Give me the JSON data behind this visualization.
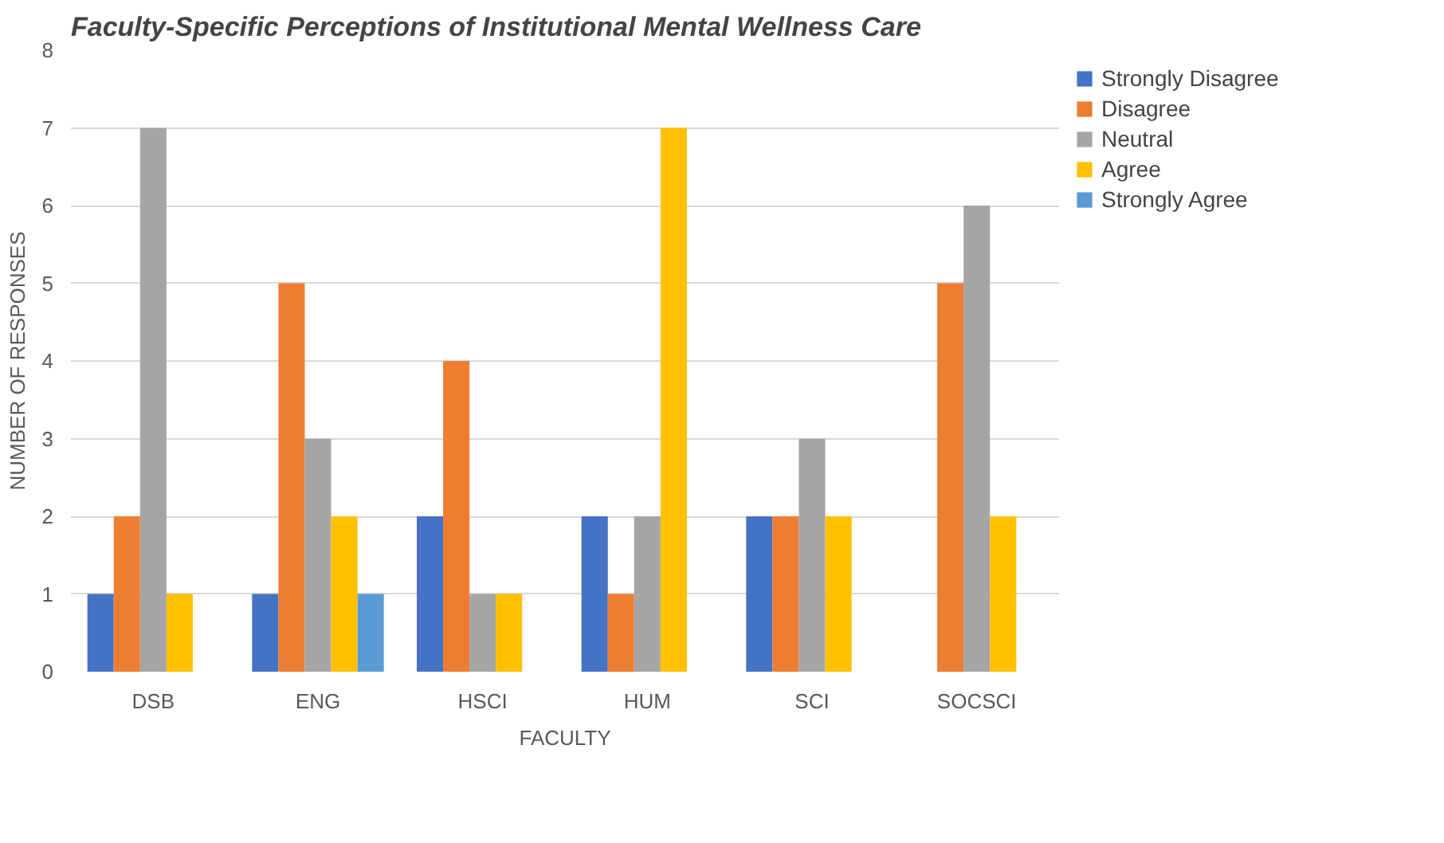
{
  "chart_data": {
    "type": "bar",
    "title": "Faculty-Specific Perceptions of Institutional Mental Wellness Care",
    "xlabel": "FACULTY",
    "ylabel": "NUMBER OF RESPONSES",
    "categories": [
      "DSB",
      "ENG",
      "HSCI",
      "HUM",
      "SCI",
      "SOCSCI"
    ],
    "series": [
      {
        "name": "Strongly Disagree",
        "color": "#4472c4",
        "values": [
          1,
          1,
          2,
          2,
          2,
          0
        ]
      },
      {
        "name": "Disagree",
        "color": "#ed7d31",
        "values": [
          2,
          5,
          4,
          1,
          2,
          5
        ]
      },
      {
        "name": "Neutral",
        "color": "#a5a5a5",
        "values": [
          7,
          3,
          1,
          2,
          3,
          6
        ]
      },
      {
        "name": "Agree",
        "color": "#ffc000",
        "values": [
          1,
          2,
          1,
          7,
          2,
          2
        ]
      },
      {
        "name": "Strongly Agree",
        "color": "#5b9bd5",
        "values": [
          0,
          1,
          0,
          0,
          0,
          0
        ]
      }
    ],
    "ylim": [
      0,
      8
    ],
    "yticks": [
      0,
      1,
      2,
      3,
      4,
      5,
      6,
      7,
      8
    ],
    "grid": "y",
    "legend": "right"
  }
}
